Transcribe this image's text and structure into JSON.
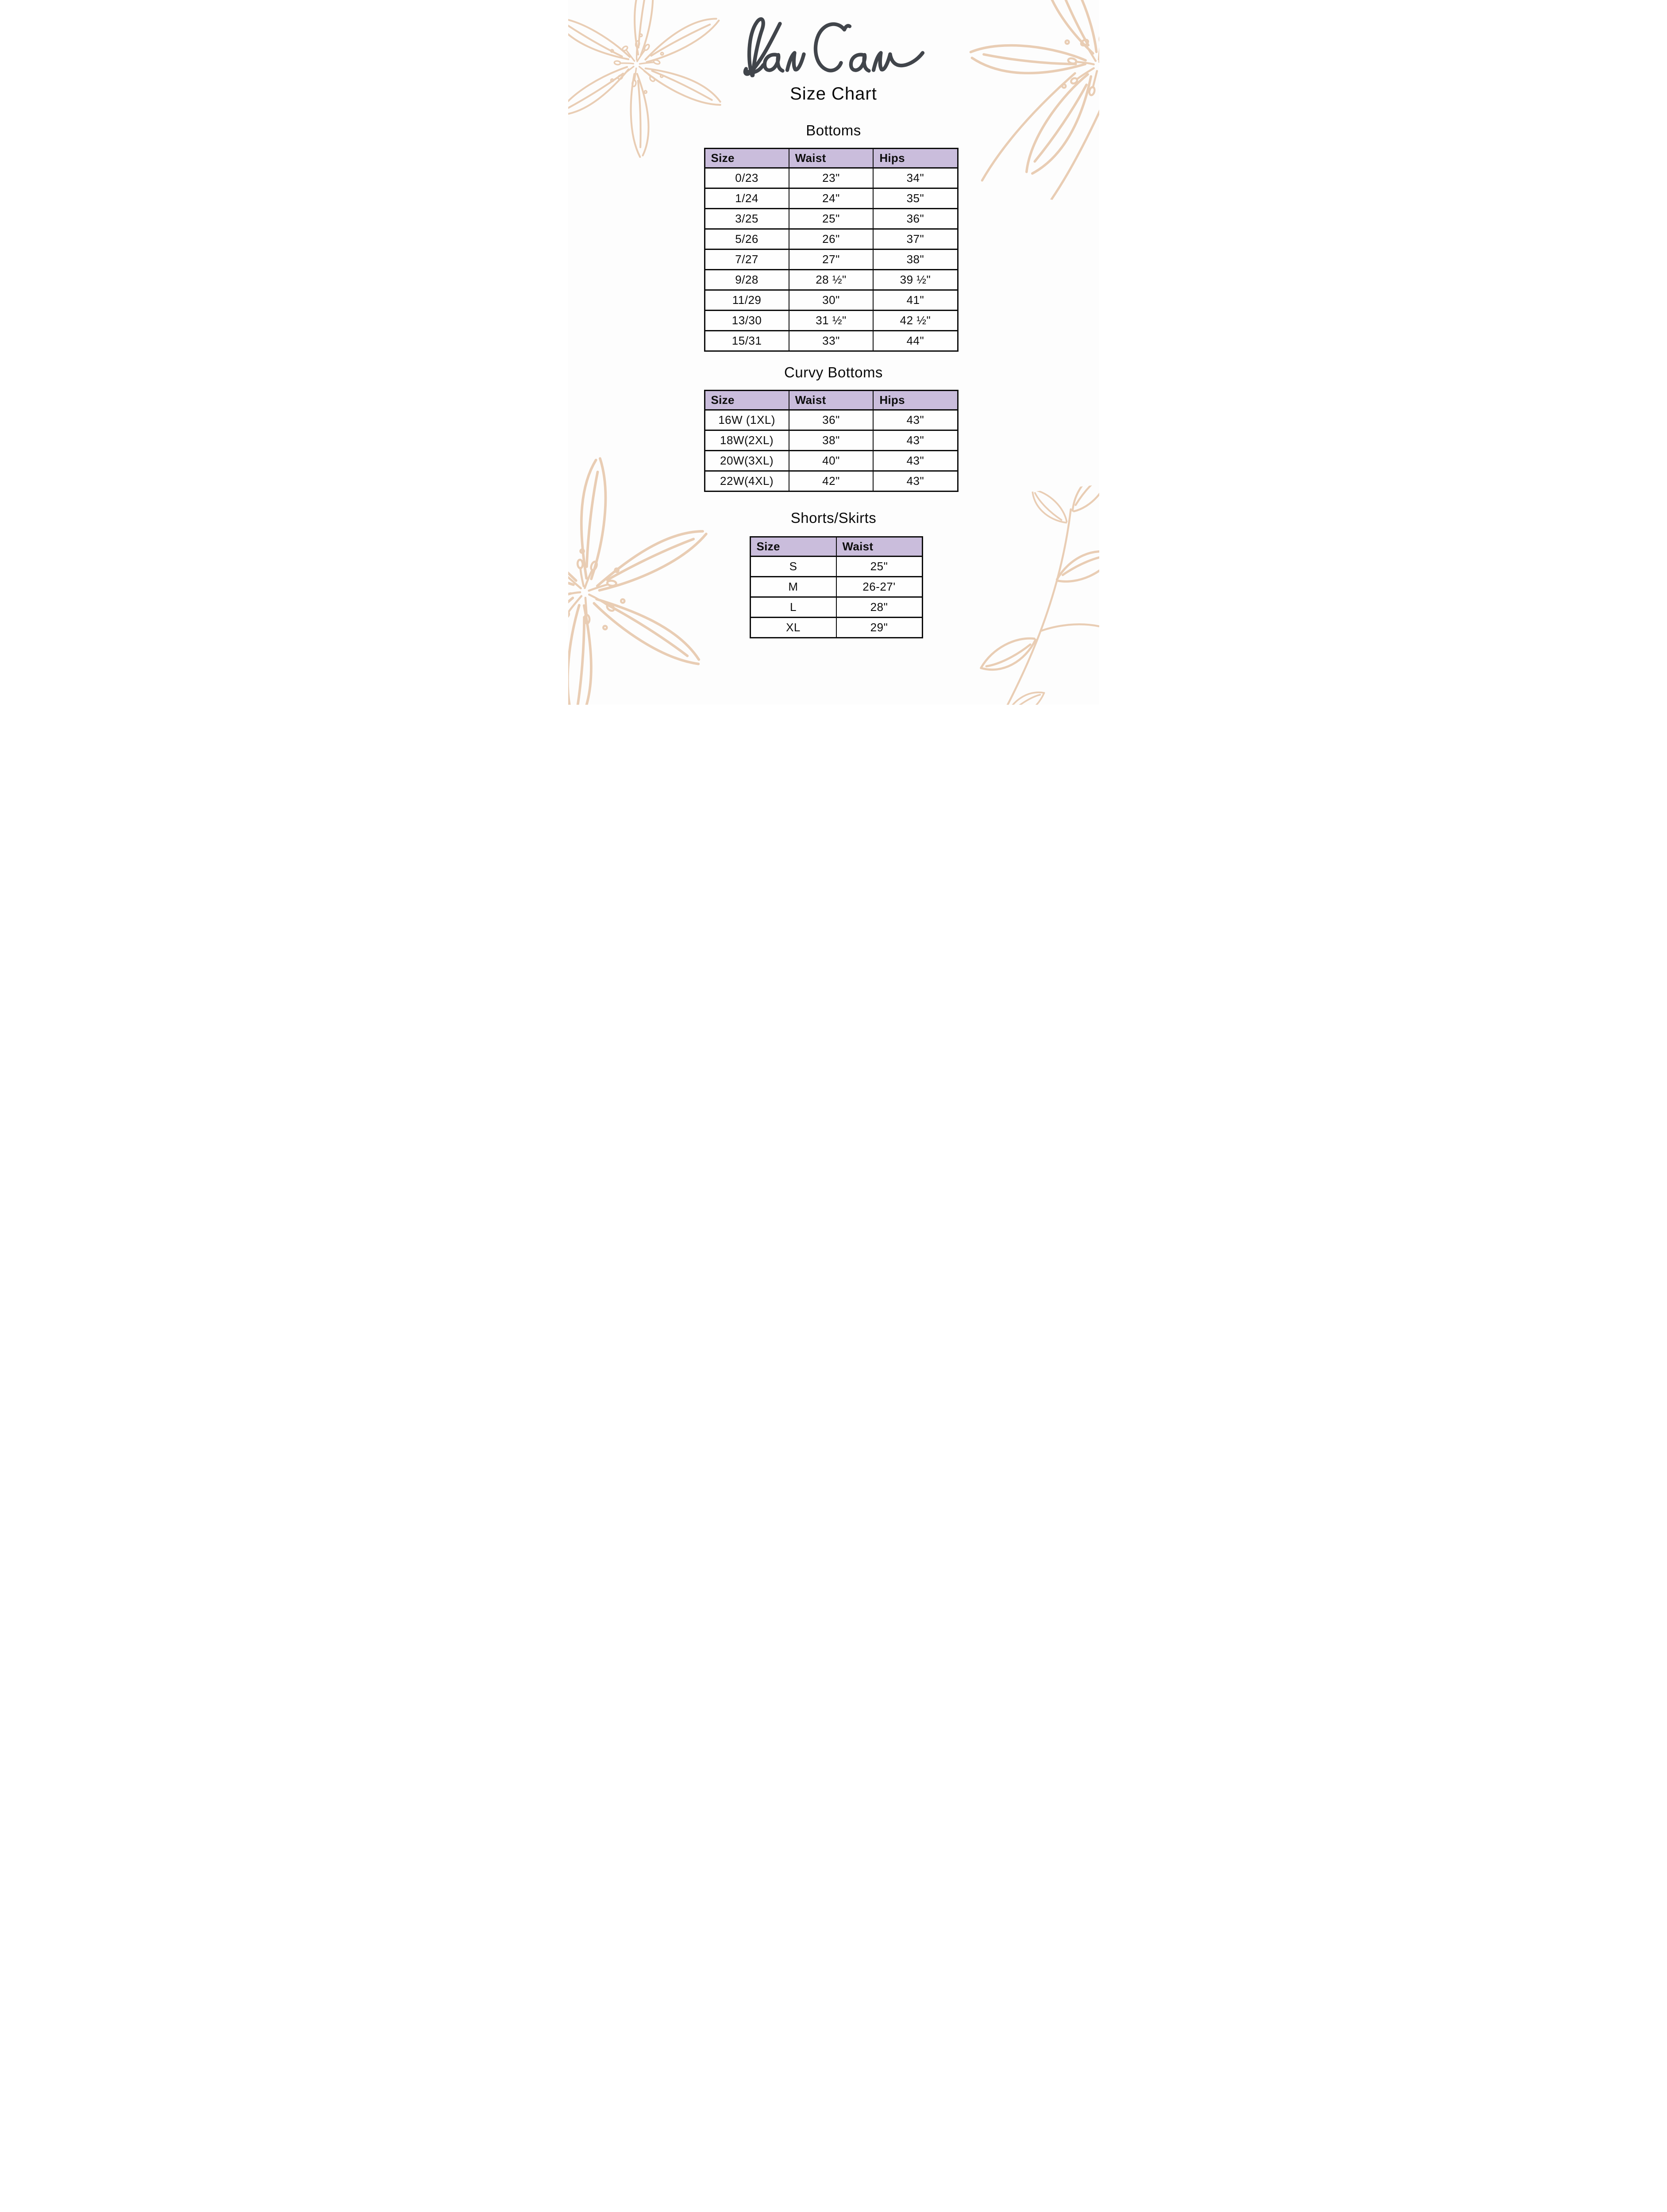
{
  "logo": {
    "brand": "KanCan",
    "subtitle": "Size Chart"
  },
  "colors": {
    "page_bg": "#fdfdfd",
    "header_bg": "#cabddc",
    "border_ink": "#0c0c0c",
    "text_ink": "#0d0d0d",
    "floral_line": "#e9cdb4",
    "logo_ink": "#41454b"
  },
  "decorations": {
    "top_left": "flower-line-art",
    "top_right": "flower-line-art",
    "middle_left": "flower-line-art",
    "bottom_right": "leafy-branch-line-art"
  },
  "sections": [
    {
      "title": "Bottoms",
      "columns": [
        "Size",
        "Waist",
        "Hips"
      ],
      "rows": [
        [
          "0/23",
          "23\"",
          "34\""
        ],
        [
          "1/24",
          "24\"",
          "35\""
        ],
        [
          "3/25",
          "25\"",
          "36\""
        ],
        [
          "5/26",
          "26\"",
          "37\""
        ],
        [
          "7/27",
          "27\"",
          "38\""
        ],
        [
          "9/28",
          "28 ½\"",
          "39 ½\""
        ],
        [
          "11/29",
          "30\"",
          "41\""
        ],
        [
          "13/30",
          "31 ½\"",
          "42 ½\""
        ],
        [
          "15/31",
          "33\"",
          "44\""
        ]
      ]
    },
    {
      "title": "Curvy Bottoms",
      "columns": [
        "Size",
        "Waist",
        "Hips"
      ],
      "rows": [
        [
          "16W (1XL)",
          "36\"",
          "43\""
        ],
        [
          "18W(2XL)",
          "38\"",
          "43\""
        ],
        [
          "20W(3XL)",
          "40\"",
          "43\""
        ],
        [
          "22W(4XL)",
          "42\"",
          "43\""
        ]
      ]
    },
    {
      "title": "Shorts/Skirts",
      "columns": [
        "Size",
        "Waist"
      ],
      "rows": [
        [
          "S",
          "25\""
        ],
        [
          "M",
          "26-27'"
        ],
        [
          "L",
          "28\""
        ],
        [
          "XL",
          "29\""
        ]
      ]
    }
  ]
}
